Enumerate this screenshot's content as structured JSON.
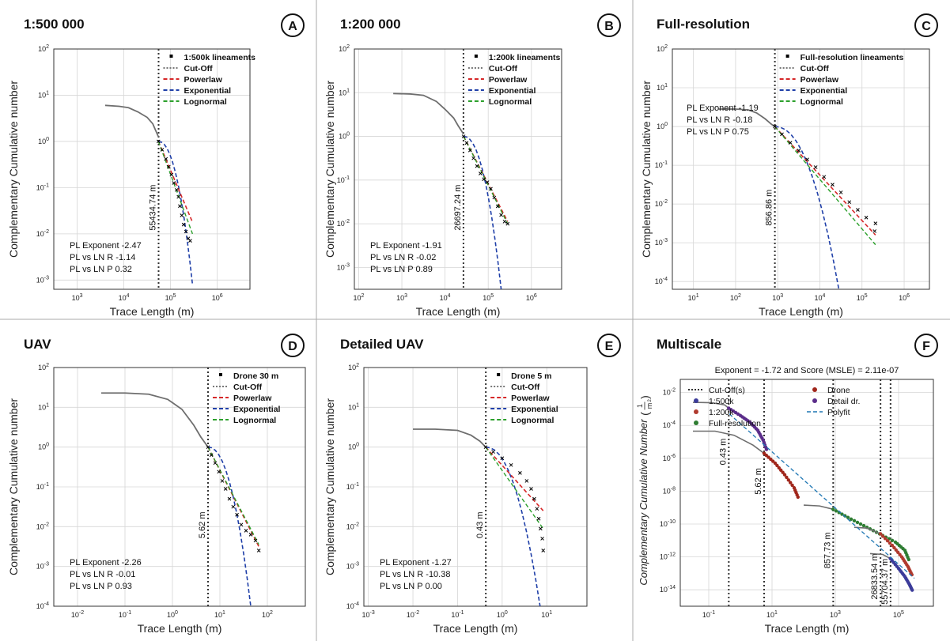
{
  "panels": [
    {
      "title": "1:500 000",
      "letter": "A",
      "ylabel": "Complementary Cumulative number",
      "xlabel": "Trace Length (m)",
      "xlog": [
        2.5,
        6.7
      ],
      "ylog": [
        -3.2,
        2
      ],
      "xticks": [
        3,
        4,
        5,
        6
      ],
      "yticks": [
        -3,
        -2,
        -1,
        0,
        1,
        2
      ],
      "cutoff_x": 55434.74,
      "cutoff_label": "55434.74 m",
      "legend": [
        "1:500k lineaments",
        "Cut-Off",
        "Powerlaw",
        "Exponential",
        "Lognormal"
      ],
      "stats": [
        "PL Exponent -2.47",
        "PL vs LN R -1.14",
        "PL vs LN P 0.32"
      ],
      "curve": [
        [
          3.6,
          0.78
        ],
        [
          3.9,
          0.76
        ],
        [
          4.1,
          0.73
        ],
        [
          4.3,
          0.64
        ],
        [
          4.5,
          0.52
        ],
        [
          4.62,
          0.38
        ],
        [
          4.74,
          0.1
        ]
      ],
      "data": [
        [
          4.74,
          0
        ],
        [
          4.82,
          -0.18
        ],
        [
          4.9,
          -0.38
        ],
        [
          4.96,
          -0.55
        ],
        [
          5.02,
          -0.72
        ],
        [
          5.07,
          -0.9
        ],
        [
          5.13,
          -1.05
        ],
        [
          5.17,
          -1.2
        ],
        [
          5.2,
          -1.4
        ],
        [
          5.24,
          -1.6
        ],
        [
          5.28,
          -1.8
        ],
        [
          5.33,
          -1.95
        ],
        [
          5.38,
          -2.1
        ],
        [
          5.42,
          -2.15
        ]
      ],
      "exp_end": [
        5.47,
        -3.1
      ],
      "pl_end": [
        5.47,
        -1.75
      ],
      "ln_end": [
        5.47,
        -2.0
      ],
      "stats_pos": "bottom-left"
    },
    {
      "title": "1:200 000",
      "letter": "B",
      "ylabel": "Complementary Cumulative number",
      "xlabel": "Trace Length (m)",
      "xlog": [
        1.9,
        6.7
      ],
      "ylog": [
        -3.5,
        2
      ],
      "xticks": [
        2,
        3,
        4,
        5,
        6
      ],
      "yticks": [
        -3,
        -2,
        -1,
        0,
        1,
        2
      ],
      "cutoff_x": 26697.24,
      "cutoff_label": "26697.24 m",
      "legend": [
        "1:200k lineaments",
        "Cut-Off",
        "Powerlaw",
        "Exponential",
        "Lognormal"
      ],
      "stats": [
        "PL Exponent -1.91",
        "PL vs LN R -0.02",
        "PL vs LN P 0.89"
      ],
      "curve": [
        [
          2.8,
          0.98
        ],
        [
          3.2,
          0.97
        ],
        [
          3.5,
          0.94
        ],
        [
          3.8,
          0.8
        ],
        [
          4.0,
          0.62
        ],
        [
          4.2,
          0.42
        ],
        [
          4.3,
          0.25
        ],
        [
          4.43,
          0.05
        ]
      ],
      "data": [
        [
          4.43,
          0
        ],
        [
          4.5,
          -0.15
        ],
        [
          4.58,
          -0.32
        ],
        [
          4.66,
          -0.5
        ],
        [
          4.74,
          -0.68
        ],
        [
          4.82,
          -0.85
        ],
        [
          4.9,
          -0.98
        ],
        [
          4.98,
          -1.05
        ],
        [
          5.06,
          -1.2
        ],
        [
          5.14,
          -1.4
        ],
        [
          5.22,
          -1.6
        ],
        [
          5.3,
          -1.8
        ],
        [
          5.38,
          -1.95
        ],
        [
          5.45,
          -2.0
        ]
      ],
      "exp_end": [
        5.3,
        -3.5
      ],
      "pl_end": [
        5.45,
        -1.95
      ],
      "ln_end": [
        5.45,
        -2.0
      ],
      "stats_pos": "bottom-left"
    },
    {
      "title": "Full-resolution",
      "letter": "C",
      "ylabel": "Complementary Cumulative number",
      "xlabel": "Trace Length (m)",
      "xlog": [
        0.5,
        6.6
      ],
      "ylog": [
        -4.2,
        2
      ],
      "xticks": [
        1,
        2,
        3,
        4,
        5,
        6
      ],
      "yticks": [
        -4,
        -3,
        -2,
        -1,
        0,
        1,
        2
      ],
      "cutoff_x": 856.86,
      "cutoff_label": "856.86 m",
      "legend": [
        "Full-resolution lineaments",
        "Cut-Off",
        "Powerlaw",
        "Exponential",
        "Lognormal"
      ],
      "stats": [
        "PL Exponent -1.19",
        "PL vs LN R -0.18",
        "PL vs LN P 0.75"
      ],
      "curve": [
        [
          1.6,
          0.45
        ],
        [
          2.0,
          0.45
        ],
        [
          2.3,
          0.43
        ],
        [
          2.5,
          0.35
        ],
        [
          2.7,
          0.2
        ],
        [
          2.85,
          0.06
        ],
        [
          2.93,
          0.0
        ]
      ],
      "data": [
        [
          2.93,
          0
        ],
        [
          3.1,
          -0.2
        ],
        [
          3.3,
          -0.42
        ],
        [
          3.5,
          -0.62
        ],
        [
          3.7,
          -0.85
        ],
        [
          3.9,
          -1.05
        ],
        [
          4.1,
          -1.3
        ],
        [
          4.3,
          -1.5
        ],
        [
          4.5,
          -1.7
        ],
        [
          4.7,
          -1.95
        ],
        [
          4.9,
          -2.15
        ],
        [
          5.1,
          -2.35
        ],
        [
          5.3,
          -2.7
        ],
        [
          5.32,
          -2.5
        ]
      ],
      "exp_end": [
        4.45,
        -4.2
      ],
      "pl_end": [
        5.32,
        -2.8
      ],
      "ln_end": [
        5.32,
        -3.05
      ],
      "stats_pos": "mid-left"
    },
    {
      "title": "UAV",
      "letter": "D",
      "ylabel": "Complementary Cumulative number",
      "xlabel": "Trace Length (m)",
      "xlog": [
        -2.5,
        2.8
      ],
      "ylog": [
        -4,
        2
      ],
      "xticks": [
        -2,
        -1,
        0,
        1,
        2
      ],
      "yticks": [
        -4,
        -3,
        -2,
        -1,
        0,
        1,
        2
      ],
      "cutoff_x": 5.62,
      "cutoff_label": "5.62 m",
      "legend": [
        "Drone 30 m",
        "Cut-Off",
        "Powerlaw",
        "Exponential",
        "Lognormal"
      ],
      "stats": [
        "PL Exponent -2.26",
        "PL vs LN R -0.01",
        "PL vs LN P 0.93"
      ],
      "curve": [
        [
          -1.5,
          1.36
        ],
        [
          -1.0,
          1.36
        ],
        [
          -0.5,
          1.33
        ],
        [
          -0.1,
          1.2
        ],
        [
          0.2,
          0.95
        ],
        [
          0.45,
          0.55
        ],
        [
          0.6,
          0.25
        ],
        [
          0.75,
          0.0
        ]
      ],
      "data": [
        [
          0.75,
          0
        ],
        [
          0.82,
          -0.2
        ],
        [
          0.9,
          -0.4
        ],
        [
          0.98,
          -0.62
        ],
        [
          1.05,
          -0.85
        ],
        [
          1.12,
          -1.05
        ],
        [
          1.2,
          -1.3
        ],
        [
          1.28,
          -1.5
        ],
        [
          1.36,
          -1.7
        ],
        [
          1.45,
          -1.95
        ],
        [
          1.55,
          -2.1
        ],
        [
          1.65,
          -2.2
        ],
        [
          1.75,
          -2.35
        ],
        [
          1.82,
          -2.6
        ]
      ],
      "exp_end": [
        1.65,
        -4.0
      ],
      "pl_end": [
        1.82,
        -2.5
      ],
      "ln_end": [
        1.82,
        -2.45
      ],
      "stats_pos": "bottom-left"
    },
    {
      "title": "Detailed UAV",
      "letter": "E",
      "ylabel": "Complementary Cumulative number",
      "xlabel": "Trace Length (m)",
      "xlog": [
        -3.1,
        1.9
      ],
      "ylog": [
        -4,
        2
      ],
      "xticks": [
        -3,
        -2,
        -1,
        0,
        1
      ],
      "yticks": [
        -4,
        -3,
        -2,
        -1,
        0,
        1,
        2
      ],
      "cutoff_x": 0.43,
      "cutoff_label": "0.43 m",
      "legend": [
        "Drone 5 m",
        "Cut-Off",
        "Powerlaw",
        "Exponential",
        "Lognormal"
      ],
      "stats": [
        "PL Exponent -1.27",
        "PL vs LN R -10.38",
        "PL vs LN P 0.00"
      ],
      "curve": [
        [
          -2.0,
          0.45
        ],
        [
          -1.5,
          0.45
        ],
        [
          -1.0,
          0.42
        ],
        [
          -0.7,
          0.3
        ],
        [
          -0.5,
          0.15
        ],
        [
          -0.37,
          0.0
        ]
      ],
      "data": [
        [
          -0.37,
          0
        ],
        [
          -0.2,
          -0.12
        ],
        [
          0.0,
          -0.28
        ],
        [
          0.2,
          -0.45
        ],
        [
          0.4,
          -0.65
        ],
        [
          0.55,
          -0.85
        ],
        [
          0.65,
          -1.05
        ],
        [
          0.72,
          -1.3
        ],
        [
          0.78,
          -1.55
        ],
        [
          0.82,
          -1.8
        ],
        [
          0.86,
          -2.05
        ],
        [
          0.9,
          -2.3
        ],
        [
          0.92,
          -2.6
        ]
      ],
      "exp_end": [
        0.85,
        -4.0
      ],
      "pl_end": [
        0.92,
        -1.6
      ],
      "ln_end": [
        0.92,
        -2.05
      ],
      "stats_pos": "bottom-left"
    }
  ],
  "multiscale": {
    "title": "Multiscale",
    "letter": "F",
    "subtitle": "Exponent = -1.72 and Score (MSLE) = 2.11e-07",
    "ylabel": "Complementary Cumulative Number (1/m²)",
    "ylabel_main": "Complementary Cumulative Number",
    "ylabel_frac_num": "1",
    "ylabel_frac_den": "m",
    "xlabel": "Trace Length (m)",
    "xlog": [
      -1.9,
      6.1
    ],
    "ylog": [
      -15,
      -1.2
    ],
    "xticks": [
      -1,
      1,
      3,
      5
    ],
    "yticks": [
      -14,
      -12,
      -10,
      -8,
      -6,
      -4,
      -2
    ],
    "cutoffs": [
      {
        "x": 0.43,
        "label": "0.43 m"
      },
      {
        "x": 5.62,
        "label": "5.62 m"
      },
      {
        "x": 857.73,
        "label": "857.73 m"
      },
      {
        "x": 26833.54,
        "label": "26833.54 m"
      },
      {
        "x": 55704.37,
        "label": "55704.37 m"
      }
    ],
    "legend": [
      {
        "label": "Cut-Off(s)",
        "style": "cutoff"
      },
      {
        "label": "Drone",
        "color": "#a0261b"
      },
      {
        "label": "1:500k",
        "color": "#3c3c9a"
      },
      {
        "label": "Detail dr.",
        "color": "#5b2d8a"
      },
      {
        "label": "1:200k",
        "color": "#b03a2e"
      },
      {
        "label": "Polyfit",
        "style": "polyfit"
      },
      {
        "label": "Full-resolution",
        "color": "#2e7d32"
      }
    ],
    "series": [
      {
        "name": "Detail dr.",
        "color": "#5b2d8a",
        "gray": [
          [
            -1.5,
            -2.6
          ],
          [
            -0.9,
            -2.62
          ],
          [
            -0.5,
            -2.75
          ],
          [
            -0.37,
            -2.95
          ]
        ],
        "pts": [
          [
            -0.37,
            -2.95
          ],
          [
            0.0,
            -3.4
          ],
          [
            0.3,
            -3.8
          ],
          [
            0.55,
            -4.3
          ],
          [
            0.72,
            -4.9
          ],
          [
            0.85,
            -5.6
          ]
        ]
      },
      {
        "name": "Drone",
        "color": "#a0261b",
        "gray": [
          [
            -1.5,
            -4.35
          ],
          [
            -0.8,
            -4.35
          ],
          [
            -0.2,
            -4.6
          ],
          [
            0.4,
            -5.2
          ],
          [
            0.75,
            -5.7
          ]
        ],
        "pts": [
          [
            0.75,
            -5.7
          ],
          [
            1.1,
            -6.3
          ],
          [
            1.4,
            -7.0
          ],
          [
            1.7,
            -7.8
          ],
          [
            1.85,
            -8.5
          ]
        ]
      },
      {
        "name": "Full-resolution",
        "color": "#2e7d32",
        "gray": [
          [
            2.0,
            -8.85
          ],
          [
            2.5,
            -8.9
          ],
          [
            2.93,
            -9.1
          ]
        ],
        "pts": [
          [
            2.93,
            -9.1
          ],
          [
            3.4,
            -9.6
          ],
          [
            3.9,
            -10.1
          ],
          [
            4.4,
            -10.6
          ],
          [
            4.9,
            -11.1
          ],
          [
            5.2,
            -11.6
          ],
          [
            5.35,
            -12.3
          ]
        ]
      },
      {
        "name": "1:200k",
        "color": "#b03a2e",
        "gray": [
          [
            3.6,
            -10.2
          ],
          [
            4.0,
            -10.25
          ],
          [
            4.43,
            -10.6
          ]
        ],
        "pts": [
          [
            4.43,
            -10.6
          ],
          [
            4.8,
            -11.3
          ],
          [
            5.1,
            -12.0
          ],
          [
            5.3,
            -12.6
          ],
          [
            5.45,
            -13.2
          ]
        ]
      },
      {
        "name": "1:500k",
        "color": "#3c3c9a",
        "gray": [
          [
            4.1,
            -11.8
          ],
          [
            4.5,
            -11.85
          ],
          [
            4.74,
            -12.1
          ]
        ],
        "pts": [
          [
            4.74,
            -12.1
          ],
          [
            5.0,
            -12.7
          ],
          [
            5.2,
            -13.2
          ],
          [
            5.35,
            -13.7
          ],
          [
            5.45,
            -14.1
          ]
        ]
      }
    ],
    "polyfit": [
      [
        -0.35,
        -3.3
      ],
      [
        5.5,
        -13.3
      ]
    ]
  },
  "colors": {
    "powerlaw": "#d62728",
    "exponential": "#1f3fa8",
    "lognormal": "#2ca02c",
    "data": "#6e6e6e",
    "marker": "#000000",
    "cutoff": "#555555"
  }
}
